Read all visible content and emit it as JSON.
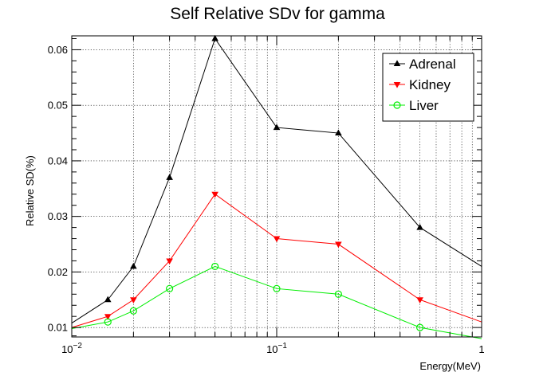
{
  "chart_data": {
    "type": "line",
    "title": "Self Relative SDv for gamma",
    "xlabel": "Energy(MeV)",
    "ylabel": "Relative SD(%)",
    "x_scale": "log",
    "xlim": [
      0.01,
      1
    ],
    "ylim": [
      0.0083,
      0.0625
    ],
    "grid": true,
    "legend_position": "top-right",
    "x_ticks": [
      {
        "value": 0.01,
        "base": "10",
        "exp": "−2"
      },
      {
        "value": 0.1,
        "base": "10",
        "exp": "−1"
      },
      {
        "value": 1,
        "base": "1",
        "exp": ""
      }
    ],
    "y_ticks": [
      {
        "value": 0.01,
        "label": "0.01"
      },
      {
        "value": 0.02,
        "label": "0.02"
      },
      {
        "value": 0.03,
        "label": "0.03"
      },
      {
        "value": 0.04,
        "label": "0.04"
      },
      {
        "value": 0.05,
        "label": "0.05"
      },
      {
        "value": 0.06,
        "label": "0.06"
      }
    ],
    "series": [
      {
        "name": "Adrenal",
        "color": "#000000",
        "marker": "triangle-up",
        "x": [
          0.01,
          0.015,
          0.02,
          0.03,
          0.05,
          0.1,
          0.2,
          0.5,
          1
        ],
        "y": [
          0.0108,
          0.015,
          0.021,
          0.037,
          0.062,
          0.046,
          0.045,
          0.028,
          0.021
        ]
      },
      {
        "name": "Kidney",
        "color": "#ff0000",
        "marker": "triangle-down",
        "x": [
          0.01,
          0.015,
          0.02,
          0.03,
          0.05,
          0.1,
          0.2,
          0.5,
          1
        ],
        "y": [
          0.01,
          0.012,
          0.015,
          0.022,
          0.034,
          0.026,
          0.025,
          0.015,
          0.011
        ]
      },
      {
        "name": "Liver",
        "color": "#00ee00",
        "marker": "circle-open",
        "x": [
          0.01,
          0.015,
          0.02,
          0.03,
          0.05,
          0.1,
          0.2,
          0.5,
          1
        ],
        "y": [
          0.0098,
          0.011,
          0.013,
          0.017,
          0.021,
          0.017,
          0.016,
          0.01,
          0.008
        ]
      }
    ]
  }
}
